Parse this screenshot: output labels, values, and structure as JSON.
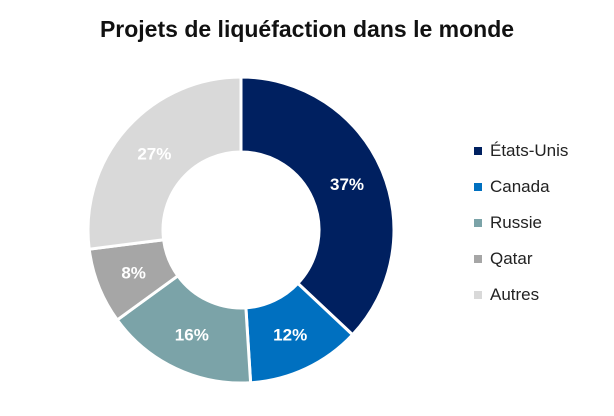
{
  "chart_data": {
    "type": "pie",
    "title": "Projets de liquéfaction dans le monde",
    "categories": [
      "États-Unis",
      "Canada",
      "Russie",
      "Qatar",
      "Autres"
    ],
    "values": [
      37,
      12,
      16,
      8,
      27
    ],
    "value_labels": [
      "37%",
      "12%",
      "16%",
      "8%",
      "27%"
    ],
    "colors": [
      "#002060",
      "#0070C0",
      "#7BA3A8",
      "#A6A6A6",
      "#D9D9D9"
    ],
    "label_colors": [
      "#ffffff",
      "#ffffff",
      "#ffffff",
      "#ffffff",
      "#ffffff"
    ],
    "legend_position": "right"
  }
}
